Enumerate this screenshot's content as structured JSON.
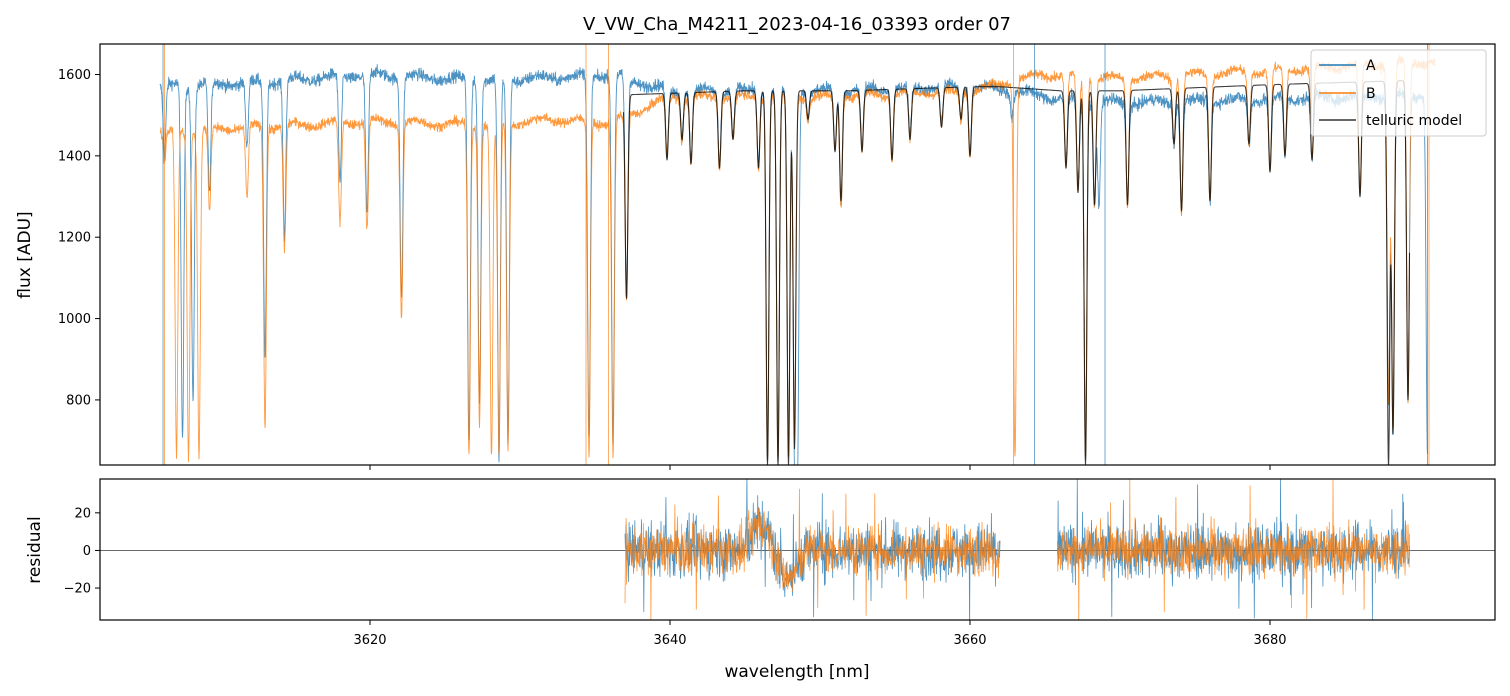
{
  "chart_data": [
    {
      "type": "line",
      "title": "V_VW_Cha_M4211_2023-04-16_03393  order 07",
      "xlabel": "",
      "ylabel": "flux [ADU]",
      "xlim": [
        3602,
        3695
      ],
      "ylim": [
        640,
        1675
      ],
      "xticks": [
        3620,
        3640,
        3660,
        3680
      ],
      "yticks": [
        800,
        1000,
        1200,
        1400,
        1600
      ],
      "ytick_labels": [
        "800",
        "1000",
        "1200",
        "1400",
        "1600"
      ],
      "grid": false,
      "legend_position": "top-right",
      "colors": {
        "A": "#1f77b4",
        "B": "#ff7f0e",
        "telluric": "#000000"
      },
      "series": [
        {
          "name": "A",
          "x_range": [
            3606,
            3690.5
          ],
          "continuum": [
            [
              3606,
              1570
            ],
            [
              3612,
              1580
            ],
            [
              3620,
              1600
            ],
            [
              3628,
              1585
            ],
            [
              3636,
              1600
            ],
            [
              3640,
              1560
            ],
            [
              3650,
              1560
            ],
            [
              3660,
              1570
            ],
            [
              3663,
              1560
            ],
            [
              3665,
              1545
            ],
            [
              3670,
              1530
            ],
            [
              3680,
              1540
            ],
            [
              3690,
              1550
            ]
          ],
          "absorption_lines": [
            [
              3606.3,
              1400
            ],
            [
              3607.5,
              700
            ],
            [
              3608.2,
              800
            ],
            [
              3609.3,
              1300
            ],
            [
              3611.8,
              1420
            ],
            [
              3613.0,
              900
            ],
            [
              3614.3,
              1200
            ],
            [
              3618.0,
              1330
            ],
            [
              3619.8,
              1250
            ],
            [
              3622.1,
              1050
            ],
            [
              3626.6,
              700
            ],
            [
              3627.3,
              800
            ],
            [
              3628.6,
              650
            ],
            [
              3629.2,
              700
            ],
            [
              3634.6,
              700
            ],
            [
              3636.2,
              700
            ],
            [
              3637.1,
              1040
            ],
            [
              3639.8,
              1400
            ],
            [
              3640.8,
              1450
            ],
            [
              3641.4,
              1390
            ],
            [
              3643.3,
              1380
            ],
            [
              3644.2,
              1450
            ],
            [
              3645.9,
              1380
            ],
            [
              3646.5,
              660
            ],
            [
              3647.2,
              650
            ],
            [
              3647.9,
              660
            ],
            [
              3648.3,
              700
            ],
            [
              3648.5,
              660
            ],
            [
              3649.2,
              1500
            ],
            [
              3651.0,
              1420
            ],
            [
              3651.4,
              1280
            ],
            [
              3652.8,
              1420
            ],
            [
              3654.8,
              1400
            ],
            [
              3656.0,
              1450
            ],
            [
              3658.1,
              1480
            ],
            [
              3659.4,
              1500
            ],
            [
              3660.0,
              1410
            ],
            [
              3662.8,
              1500
            ],
            [
              3666.4,
              1380
            ],
            [
              3667.2,
              1320
            ],
            [
              3667.7,
              660
            ],
            [
              3668.3,
              1290
            ],
            [
              3668.6,
              1280
            ],
            [
              3670.5,
              1290
            ],
            [
              3673.6,
              1430
            ],
            [
              3674.1,
              1270
            ],
            [
              3676.0,
              1290
            ],
            [
              3678.6,
              1430
            ],
            [
              3680.0,
              1360
            ],
            [
              3681.0,
              1400
            ],
            [
              3682.8,
              1390
            ],
            [
              3686.0,
              1300
            ],
            [
              3687.9,
              800
            ],
            [
              3688.2,
              720
            ],
            [
              3689.2,
              800
            ],
            [
              3690.5,
              660
            ]
          ]
        },
        {
          "name": "B",
          "x_range": [
            3606,
            3691
          ],
          "continuum": [
            [
              3606,
              1460
            ],
            [
              3612,
              1470
            ],
            [
              3620,
              1485
            ],
            [
              3628,
              1475
            ],
            [
              3632,
              1490
            ],
            [
              3636,
              1480
            ],
            [
              3640,
              1545
            ],
            [
              3650,
              1545
            ],
            [
              3660,
              1560
            ],
            [
              3665,
              1600
            ],
            [
              3670,
              1590
            ],
            [
              3680,
              1610
            ],
            [
              3690,
              1630
            ]
          ],
          "absorption_lines": [
            [
              3606.3,
              1380
            ],
            [
              3607.1,
              660
            ],
            [
              3607.9,
              660
            ],
            [
              3608.6,
              660
            ],
            [
              3609.3,
              1260
            ],
            [
              3611.8,
              1290
            ],
            [
              3613.0,
              740
            ],
            [
              3614.3,
              1170
            ],
            [
              3618.0,
              1230
            ],
            [
              3619.8,
              1220
            ],
            [
              3622.1,
              1000
            ],
            [
              3626.6,
              660
            ],
            [
              3627.3,
              740
            ],
            [
              3628.1,
              660
            ],
            [
              3628.6,
              660
            ],
            [
              3629.2,
              680
            ],
            [
              3634.6,
              660
            ],
            [
              3636.2,
              660
            ],
            [
              3637.1,
              1040
            ],
            [
              3639.8,
              1400
            ],
            [
              3640.8,
              1440
            ],
            [
              3641.4,
              1380
            ],
            [
              3643.3,
              1370
            ],
            [
              3644.2,
              1440
            ],
            [
              3645.9,
              1370
            ],
            [
              3646.5,
              660
            ],
            [
              3647.2,
              650
            ],
            [
              3647.9,
              660
            ],
            [
              3648.3,
              700
            ],
            [
              3649.2,
              1490
            ],
            [
              3651.0,
              1410
            ],
            [
              3651.4,
              1280
            ],
            [
              3652.8,
              1410
            ],
            [
              3654.8,
              1390
            ],
            [
              3656.0,
              1440
            ],
            [
              3658.1,
              1470
            ],
            [
              3659.4,
              1490
            ],
            [
              3660.0,
              1400
            ],
            [
              3663.0,
              660
            ],
            [
              3666.4,
              1370
            ],
            [
              3667.2,
              1310
            ],
            [
              3667.7,
              660
            ],
            [
              3668.3,
              1280
            ],
            [
              3670.5,
              1280
            ],
            [
              3673.6,
              1430
            ],
            [
              3674.1,
              1260
            ],
            [
              3676.0,
              1290
            ],
            [
              3678.6,
              1430
            ],
            [
              3680.0,
              1360
            ],
            [
              3681.0,
              1400
            ],
            [
              3682.8,
              1390
            ],
            [
              3686.0,
              1300
            ],
            [
              3687.9,
              790
            ],
            [
              3688.2,
              720
            ],
            [
              3689.2,
              790
            ]
          ]
        },
        {
          "name": "telluric model",
          "x_range": [
            3636.9,
            3689.3
          ],
          "continuum": [
            [
              3637,
              1550
            ],
            [
              3645,
              1560
            ],
            [
              3652,
              1560
            ],
            [
              3660,
              1570
            ],
            [
              3662,
              1570
            ],
            [
              3666,
              1560
            ],
            [
              3670,
              1560
            ],
            [
              3680,
              1575
            ],
            [
              3689,
              1585
            ]
          ],
          "absorption_lines": [
            [
              3637.1,
              1050
            ],
            [
              3639.8,
              1390
            ],
            [
              3640.8,
              1440
            ],
            [
              3641.4,
              1380
            ],
            [
              3643.3,
              1370
            ],
            [
              3644.2,
              1440
            ],
            [
              3645.9,
              1370
            ],
            [
              3646.5,
              640
            ],
            [
              3647.2,
              640
            ],
            [
              3647.9,
              640
            ],
            [
              3648.3,
              680
            ],
            [
              3649.2,
              1490
            ],
            [
              3651.0,
              1410
            ],
            [
              3651.4,
              1290
            ],
            [
              3652.8,
              1410
            ],
            [
              3654.8,
              1390
            ],
            [
              3656.0,
              1440
            ],
            [
              3658.1,
              1470
            ],
            [
              3659.4,
              1490
            ],
            [
              3660.0,
              1400
            ],
            [
              3666.4,
              1370
            ],
            [
              3667.2,
              1310
            ],
            [
              3667.7,
              640
            ],
            [
              3668.3,
              1280
            ],
            [
              3670.5,
              1280
            ],
            [
              3673.6,
              1430
            ],
            [
              3674.1,
              1265
            ],
            [
              3676.0,
              1290
            ],
            [
              3678.6,
              1430
            ],
            [
              3680.0,
              1360
            ],
            [
              3681.0,
              1400
            ],
            [
              3682.8,
              1390
            ],
            [
              3686.0,
              1300
            ],
            [
              3687.9,
              640
            ],
            [
              3688.2,
              720
            ],
            [
              3689.2,
              800
            ]
          ]
        }
      ],
      "legend": [
        "A",
        "B",
        "telluric model"
      ]
    },
    {
      "type": "line",
      "title": "",
      "xlabel": "wavelength [nm]",
      "ylabel": "residual",
      "xlim": [
        3602,
        3695
      ],
      "ylim": [
        -37,
        38
      ],
      "xticks": [
        3620,
        3640,
        3660,
        3680
      ],
      "xtick_labels": [
        "3620",
        "3640",
        "3660",
        "3680"
      ],
      "yticks": [
        -20,
        0,
        20
      ],
      "ytick_labels": [
        "−20",
        "0",
        "20"
      ],
      "zero_line": 0,
      "grid": false,
      "series": [
        {
          "name": "A",
          "segments": [
            [
              3637.0,
              3662.0
            ],
            [
              3665.8,
              3689.3
            ]
          ],
          "noise_amplitude": 14
        },
        {
          "name": "B",
          "segments": [
            [
              3637.0,
              3662.0
            ],
            [
              3665.8,
              3689.3
            ]
          ],
          "noise_amplitude": 12
        }
      ]
    }
  ]
}
